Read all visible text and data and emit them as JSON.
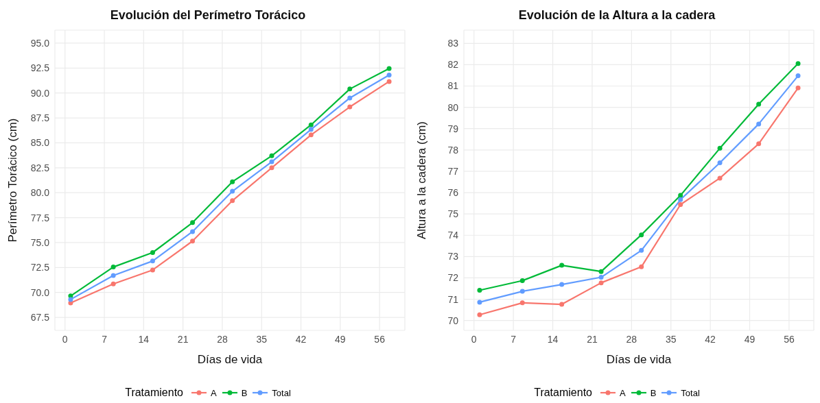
{
  "chart_data": [
    {
      "type": "line",
      "title": "Evolución del Perímetro Torácico",
      "xlabel": "Días de vida",
      "ylabel": "Perímetro Torácico (cm)",
      "legend_title": "Tratamiento",
      "legend": "bottom",
      "grid": true,
      "marker": "circle",
      "line_style": "solid",
      "x": [
        1,
        8.6,
        15.6,
        22.7,
        29.8,
        36.8,
        43.8,
        50.7,
        57.7
      ],
      "xlim": [
        -1.8,
        60.5
      ],
      "xticks": [
        0,
        7,
        14,
        21,
        28,
        35,
        42,
        49,
        56
      ],
      "ylim": [
        66.2,
        96.3
      ],
      "yticks": [
        67.5,
        {
          "value": 70,
          "label": "70.0"
        },
        72.5,
        {
          "value": 75,
          "label": "75.0"
        },
        77.5,
        {
          "value": 80,
          "label": "80.0"
        },
        82.5,
        {
          "value": 85,
          "label": "85.0"
        },
        87.5,
        {
          "value": 90,
          "label": "90.0"
        },
        92.5,
        {
          "value": 95,
          "label": "95.0"
        }
      ],
      "series": [
        {
          "name": "A",
          "color": "#f8766d",
          "values": [
            68.95,
            70.85,
            72.25,
            75.15,
            79.2,
            82.5,
            85.8,
            88.6,
            91.15
          ]
        },
        {
          "name": "B",
          "color": "#00ba38",
          "values": [
            69.65,
            72.55,
            74.0,
            77.0,
            81.1,
            83.7,
            86.8,
            90.4,
            92.45
          ]
        },
        {
          "name": "Total",
          "color": "#619cff",
          "values": [
            69.3,
            71.7,
            73.15,
            76.1,
            80.15,
            83.1,
            86.35,
            89.5,
            91.8
          ]
        }
      ]
    },
    {
      "type": "line",
      "title": "Evolución de la Altura a la cadera",
      "xlabel": "Días de vida",
      "ylabel": "Altura a la cadera (cm)",
      "legend_title": "Tratamiento",
      "legend": "bottom",
      "grid": true,
      "marker": "circle",
      "line_style": "solid",
      "x": [
        1,
        8.6,
        15.6,
        22.6,
        29.75,
        36.7,
        43.7,
        50.6,
        57.6
      ],
      "xlim": [
        -1.8,
        60.4
      ],
      "xticks": [
        0,
        7,
        14,
        21,
        28,
        35,
        42,
        49,
        56
      ],
      "ylim": [
        69.54,
        83.62
      ],
      "yticks": [
        70,
        71,
        72,
        73,
        74,
        75,
        76,
        77,
        78,
        79,
        80,
        81,
        82,
        83
      ],
      "series": [
        {
          "name": "A",
          "color": "#f8766d",
          "values": [
            70.27,
            70.83,
            70.76,
            71.77,
            72.52,
            75.44,
            76.68,
            78.29,
            80.91
          ]
        },
        {
          "name": "B",
          "color": "#00ba38",
          "values": [
            71.42,
            71.87,
            72.59,
            72.3,
            74.02,
            75.87,
            78.08,
            80.15,
            82.05
          ]
        },
        {
          "name": "Total",
          "color": "#619cff",
          "values": [
            70.86,
            71.37,
            71.69,
            72.03,
            73.29,
            75.67,
            77.4,
            79.22,
            81.48
          ]
        }
      ]
    }
  ]
}
